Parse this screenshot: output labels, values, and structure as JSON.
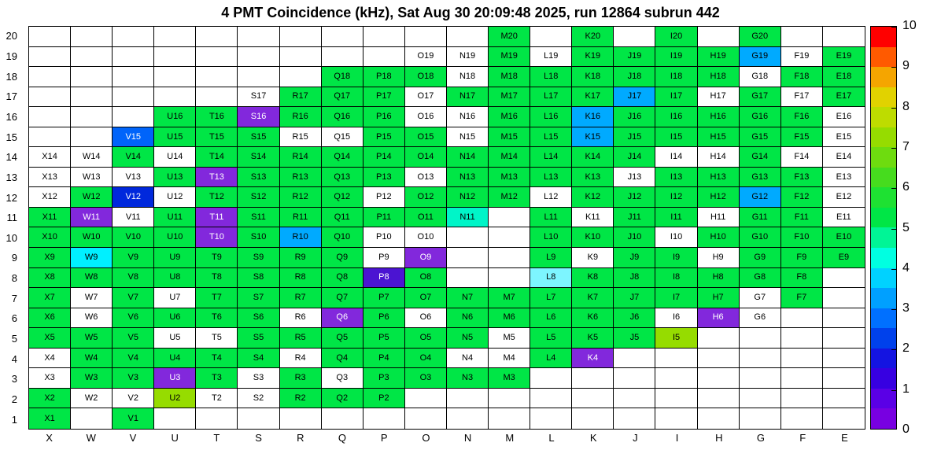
{
  "title": "4 PMT Coincidence (kHz), Sat Aug 30 20:09:48 2025, run 12864 subrun 442",
  "chart_data": {
    "type": "heatmap",
    "title": "4 PMT Coincidence (kHz), Sat Aug 30 20:09:48 2025, run 12864 subrun 442",
    "x_categories": [
      "X",
      "W",
      "V",
      "U",
      "T",
      "S",
      "R",
      "Q",
      "P",
      "O",
      "N",
      "M",
      "L",
      "K",
      "J",
      "I",
      "H",
      "G",
      "F",
      "E"
    ],
    "y_categories": [
      "20",
      "19",
      "18",
      "17",
      "16",
      "15",
      "14",
      "13",
      "12",
      "11",
      "10",
      "9",
      "8",
      "7",
      "6",
      "5",
      "4",
      "3",
      "2",
      "1"
    ],
    "colorbar": {
      "min": 0,
      "max": 10,
      "ticks": [
        0,
        1,
        2,
        3,
        4,
        5,
        6,
        7,
        8,
        9,
        10
      ],
      "band_colors_bottom_to_top": [
        "#7800E1",
        "#5A00E6",
        "#3700E1",
        "#1414E1",
        "#0041EB",
        "#0070FF",
        "#00A0FF",
        "#00D2FF",
        "#00FFE1",
        "#00F596",
        "#00E646",
        "#1EE132",
        "#46DC1E",
        "#6EDC0F",
        "#96DC00",
        "#BEDC00",
        "#E1D200",
        "#F5A500",
        "#FF5A00",
        "#FF0000"
      ]
    },
    "cell_colors": {
      "g": "#00E646",
      "yg": "#96DC00",
      "tq": "#00F5C8",
      "cy": "#00F0FF",
      "lcy": "#7DF5FF",
      "lb": "#00AAFF",
      "b": "#0064FA",
      "db": "#0028DC",
      "ind": "#4B14D2",
      "p": "#8228DC",
      "w": "#FFFFFF"
    },
    "value_estimates_khz": {
      "g": 5.2,
      "yg": 7.5,
      "tq": 4.7,
      "cy": 4.2,
      "lcy": 4.4,
      "lb": 3.3,
      "b": 2.7,
      "db": 1.7,
      "ind": 1.0,
      "p": 0.6,
      "w": null
    },
    "white_text_codes": [
      "b",
      "db",
      "ind",
      "p"
    ],
    "grid": [
      [
        "",
        "",
        "",
        "",
        "",
        "",
        "",
        "",
        "",
        "",
        "",
        "g",
        "",
        "g",
        "",
        "g",
        "",
        "g",
        "",
        ""
      ],
      [
        "",
        "",
        "",
        "",
        "",
        "",
        "",
        "",
        "",
        "w",
        "w",
        "g",
        "w",
        "g",
        "g",
        "g",
        "g",
        "lb",
        "w",
        "g"
      ],
      [
        "",
        "",
        "",
        "",
        "",
        "",
        "",
        "g",
        "g",
        "g",
        "w",
        "g",
        "g",
        "g",
        "g",
        "g",
        "g",
        "w",
        "g",
        "g"
      ],
      [
        "",
        "",
        "",
        "",
        "",
        "w",
        "g",
        "g",
        "g",
        "w",
        "g",
        "g",
        "g",
        "g",
        "lb",
        "g",
        "w",
        "g",
        "w",
        "g"
      ],
      [
        "",
        "",
        "",
        "g",
        "g",
        "p",
        "g",
        "g",
        "g",
        "w",
        "w",
        "g",
        "g",
        "lb",
        "g",
        "g",
        "g",
        "g",
        "g",
        "w"
      ],
      [
        "",
        "",
        "b",
        "g",
        "g",
        "g",
        "w",
        "w",
        "g",
        "g",
        "w",
        "g",
        "g",
        "lb",
        "g",
        "g",
        "g",
        "g",
        "g",
        "w"
      ],
      [
        "w",
        "w",
        "g",
        "w",
        "g",
        "g",
        "g",
        "g",
        "g",
        "g",
        "g",
        "g",
        "g",
        "g",
        "g",
        "w",
        "w",
        "g",
        "w",
        "w"
      ],
      [
        "w",
        "w",
        "w",
        "g",
        "p",
        "g",
        "g",
        "g",
        "g",
        "w",
        "g",
        "g",
        "g",
        "g",
        "w",
        "g",
        "g",
        "g",
        "g",
        "w"
      ],
      [
        "w",
        "g",
        "db",
        "w",
        "g",
        "g",
        "g",
        "g",
        "w",
        "g",
        "g",
        "g",
        "w",
        "g",
        "g",
        "g",
        "g",
        "lb",
        "g",
        "w"
      ],
      [
        "g",
        "p",
        "w",
        "g",
        "p",
        "g",
        "g",
        "g",
        "g",
        "g",
        "tq",
        "",
        "g",
        "w",
        "g",
        "g",
        "w",
        "g",
        "g",
        "w"
      ],
      [
        "g",
        "g",
        "g",
        "g",
        "p",
        "g",
        "lb",
        "g",
        "w",
        "w",
        "",
        "",
        "g",
        "g",
        "g",
        "w",
        "g",
        "g",
        "g",
        "g"
      ],
      [
        "g",
        "cy",
        "g",
        "g",
        "g",
        "g",
        "g",
        "g",
        "w",
        "p",
        "",
        "",
        "g",
        "w",
        "g",
        "g",
        "w",
        "g",
        "g",
        "g"
      ],
      [
        "g",
        "g",
        "g",
        "g",
        "g",
        "g",
        "g",
        "g",
        "ind",
        "g",
        "",
        "",
        "lcy",
        "g",
        "g",
        "g",
        "g",
        "g",
        "g",
        ""
      ],
      [
        "g",
        "w",
        "g",
        "w",
        "g",
        "g",
        "g",
        "g",
        "g",
        "g",
        "g",
        "g",
        "g",
        "g",
        "g",
        "g",
        "g",
        "w",
        "g",
        ""
      ],
      [
        "g",
        "w",
        "g",
        "g",
        "g",
        "g",
        "w",
        "p",
        "g",
        "w",
        "g",
        "g",
        "g",
        "g",
        "g",
        "w",
        "p",
        "w",
        "",
        ""
      ],
      [
        "g",
        "g",
        "g",
        "w",
        "w",
        "g",
        "g",
        "g",
        "g",
        "g",
        "g",
        "w",
        "g",
        "g",
        "g",
        "yg",
        "",
        "",
        "",
        ""
      ],
      [
        "w",
        "g",
        "g",
        "g",
        "g",
        "g",
        "w",
        "g",
        "g",
        "g",
        "w",
        "w",
        "g",
        "p",
        "",
        "",
        "",
        "",
        "",
        ""
      ],
      [
        "w",
        "g",
        "g",
        "p",
        "g",
        "w",
        "g",
        "w",
        "g",
        "g",
        "g",
        "g",
        "",
        "",
        "",
        "",
        "",
        "",
        "",
        ""
      ],
      [
        "g",
        "w",
        "w",
        "yg",
        "w",
        "w",
        "g",
        "g",
        "g",
        "",
        "",
        "",
        "",
        "",
        "",
        "",
        "",
        "",
        "",
        ""
      ],
      [
        "g",
        "",
        "g",
        "",
        "",
        "",
        "",
        "",
        "",
        "",
        "",
        "",
        "",
        "",
        "",
        "",
        "",
        "",
        "",
        ""
      ]
    ]
  }
}
